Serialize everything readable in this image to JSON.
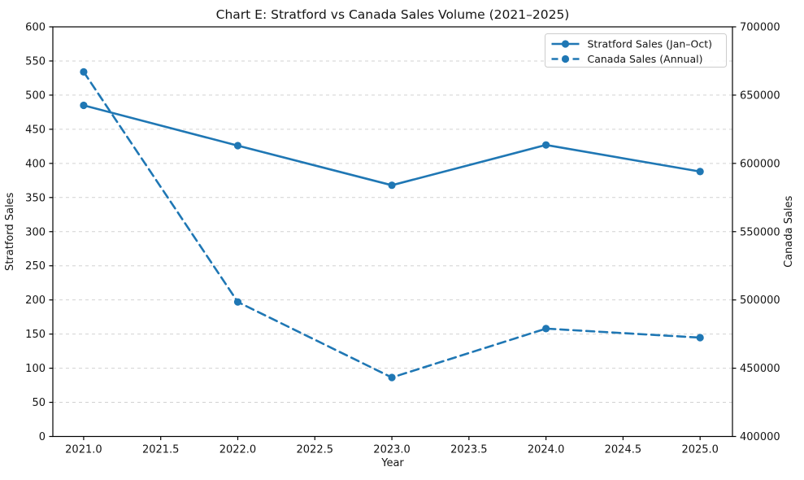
{
  "chart_data": {
    "type": "line",
    "title": "Chart E: Stratford vs Canada Sales Volume (2021–2025)",
    "xlabel": "Year",
    "ylabel_left": "Stratford Sales",
    "ylabel_right": "Canada Sales",
    "x": [
      2021,
      2022,
      2023,
      2024,
      2025
    ],
    "series": [
      {
        "name": "Stratford Sales (Jan–Oct)",
        "axis": "left",
        "line_style": "solid",
        "marker": "circle",
        "color": "#1f77b4",
        "values": [
          485,
          426,
          368,
          427,
          388
        ]
      },
      {
        "name": "Canada Sales (Annual)",
        "axis": "right",
        "line_style": "dashed",
        "marker": "circle",
        "color": "#1f77b4",
        "values": [
          667000,
          498500,
          443200,
          479000,
          472400
        ]
      }
    ],
    "left_axis": {
      "min": 0,
      "max": 600,
      "tick_step": 50,
      "ticks": [
        0,
        50,
        100,
        150,
        200,
        250,
        300,
        350,
        400,
        450,
        500,
        550,
        600
      ]
    },
    "right_axis": {
      "min": 400000,
      "max": 700000,
      "tick_step": 50000,
      "ticks": [
        400000,
        450000,
        500000,
        550000,
        600000,
        650000,
        700000
      ]
    },
    "x_axis": {
      "min": 2020.8,
      "max": 2025.21,
      "ticks": [
        2021.0,
        2021.5,
        2022.0,
        2022.5,
        2023.0,
        2023.5,
        2024.0,
        2024.5,
        2025.0
      ]
    },
    "grid": {
      "orientation": "horizontal",
      "style": "dashed",
      "color": "#d2d2d2"
    },
    "legend": {
      "position": "upper-right",
      "entries": [
        "Stratford Sales (Jan–Oct)",
        "Canada Sales (Annual)"
      ]
    },
    "frame_color": "#000000",
    "background": "#ffffff"
  }
}
